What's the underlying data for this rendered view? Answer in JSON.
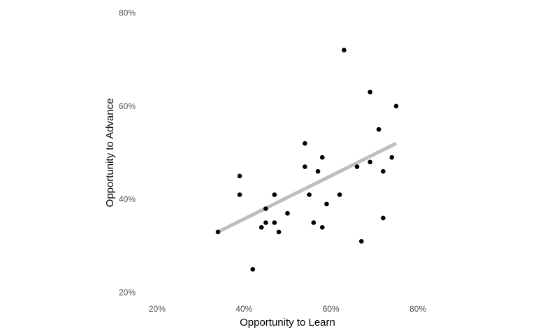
{
  "chart_data": {
    "type": "scatter",
    "title": "",
    "xlabel": "Opportunity to Learn",
    "ylabel": "Opportunity to Advance",
    "xlim": [
      0.16,
      0.84
    ],
    "ylim": [
      0.18,
      0.82
    ],
    "x_ticks": [
      0.2,
      0.4,
      0.6,
      0.8
    ],
    "x_tick_labels": [
      "20%",
      "40%",
      "60%",
      "80%"
    ],
    "y_ticks": [
      0.2,
      0.4,
      0.6,
      0.8
    ],
    "y_tick_labels": [
      "20%",
      "40%",
      "60%",
      "80%"
    ],
    "grid": false,
    "point_color": "#000000",
    "trend_color": "#bebebe",
    "trend_line": {
      "x": [
        0.34,
        0.75
      ],
      "y": [
        0.33,
        0.52
      ]
    },
    "points": [
      {
        "x": 0.34,
        "y": 0.33
      },
      {
        "x": 0.39,
        "y": 0.45
      },
      {
        "x": 0.39,
        "y": 0.41
      },
      {
        "x": 0.42,
        "y": 0.25
      },
      {
        "x": 0.44,
        "y": 0.34
      },
      {
        "x": 0.45,
        "y": 0.35
      },
      {
        "x": 0.45,
        "y": 0.38
      },
      {
        "x": 0.47,
        "y": 0.41
      },
      {
        "x": 0.47,
        "y": 0.35
      },
      {
        "x": 0.48,
        "y": 0.33
      },
      {
        "x": 0.5,
        "y": 0.37
      },
      {
        "x": 0.54,
        "y": 0.52
      },
      {
        "x": 0.54,
        "y": 0.47
      },
      {
        "x": 0.55,
        "y": 0.41
      },
      {
        "x": 0.56,
        "y": 0.35
      },
      {
        "x": 0.57,
        "y": 0.46
      },
      {
        "x": 0.58,
        "y": 0.49
      },
      {
        "x": 0.58,
        "y": 0.34
      },
      {
        "x": 0.59,
        "y": 0.39
      },
      {
        "x": 0.62,
        "y": 0.41
      },
      {
        "x": 0.63,
        "y": 0.72
      },
      {
        "x": 0.66,
        "y": 0.47
      },
      {
        "x": 0.67,
        "y": 0.31
      },
      {
        "x": 0.69,
        "y": 0.48
      },
      {
        "x": 0.69,
        "y": 0.63
      },
      {
        "x": 0.71,
        "y": 0.55
      },
      {
        "x": 0.72,
        "y": 0.46
      },
      {
        "x": 0.72,
        "y": 0.36
      },
      {
        "x": 0.74,
        "y": 0.49
      },
      {
        "x": 0.75,
        "y": 0.6
      }
    ]
  }
}
